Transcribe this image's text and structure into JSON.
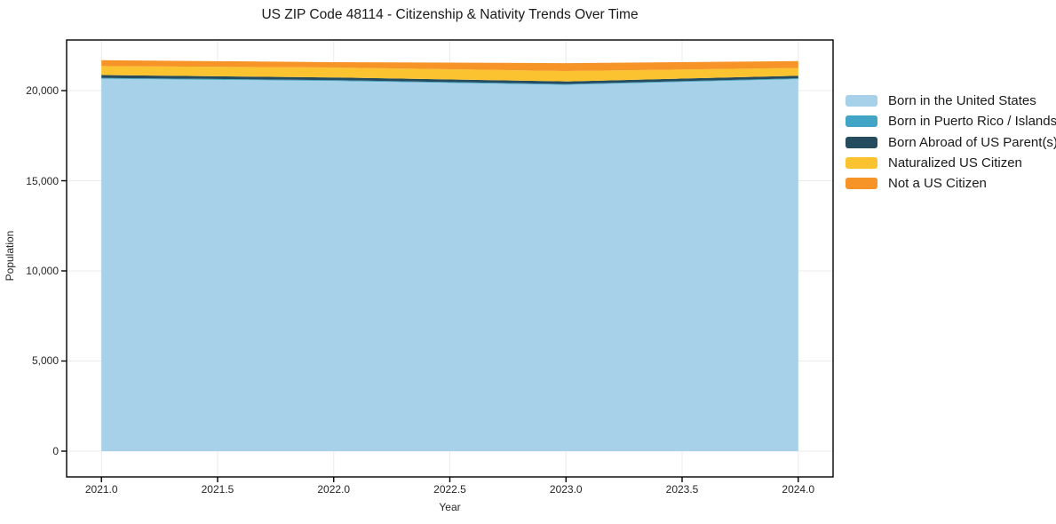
{
  "title": "US ZIP Code 48114 - Citizenship & Nativity Trends Over Time",
  "chart_data": {
    "type": "area",
    "stacked": true,
    "title": "US ZIP Code 48114 - Citizenship & Nativity Trends Over Time",
    "xlabel": "Year",
    "ylabel": "Population",
    "x": [
      2021,
      2022,
      2023,
      2024
    ],
    "series": [
      {
        "name": "Born in the United States",
        "color": "#a6d1e8",
        "values": [
          20660,
          20540,
          20320,
          20640
        ]
      },
      {
        "name": "Born in Puerto Rico / Islands",
        "color": "#43a5c5",
        "values": [
          45,
          45,
          45,
          45
        ]
      },
      {
        "name": "Born Abroad of US Parent(s)",
        "color": "#254b5e",
        "values": [
          160,
          145,
          145,
          140
        ]
      },
      {
        "name": "Naturalized US Citizen",
        "color": "#fcc330",
        "values": [
          495,
          555,
          575,
          435
        ]
      },
      {
        "name": "Not a US Citizen",
        "color": "#f79428",
        "values": [
          330,
          295,
          440,
          375
        ]
      }
    ],
    "xticks": [
      2021.0,
      2021.5,
      2022.0,
      2022.5,
      2023.0,
      2023.5,
      2024.0
    ],
    "xtick_labels": [
      "2021.0",
      "2021.5",
      "2022.0",
      "2022.5",
      "2023.0",
      "2023.5",
      "2024.0"
    ],
    "yticks": [
      0,
      5000,
      10000,
      15000,
      20000
    ],
    "ytick_labels": [
      "0",
      "5,000",
      "10,000",
      "15,000",
      "20,000"
    ],
    "xlim": [
      2020.85,
      2024.15
    ],
    "ylim": [
      -1430,
      22810
    ],
    "grid": true,
    "grid_color": "#ebebeb",
    "frame_color": "#000000",
    "legend_position": "right"
  }
}
